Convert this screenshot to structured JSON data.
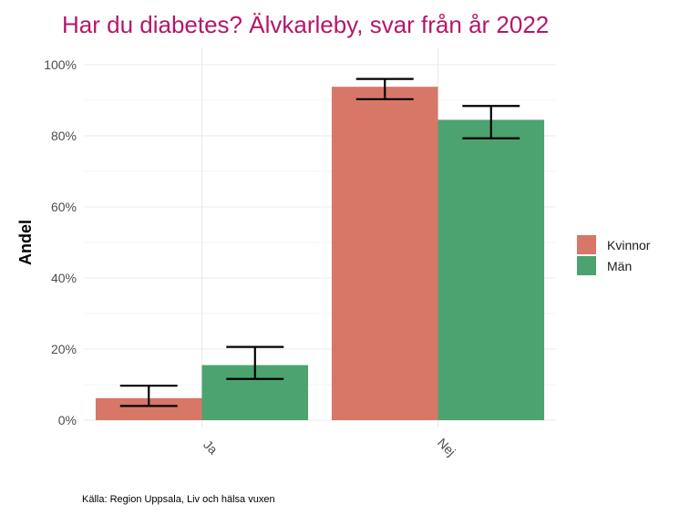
{
  "chart_data": {
    "type": "bar",
    "title": "Har du diabetes? Älvkarleby, svar från år 2022",
    "xlabel": "",
    "ylabel": "Andel",
    "categories": [
      "Ja",
      "Nej"
    ],
    "series": [
      {
        "name": "Kvinnor",
        "color": "#d67768",
        "values": [
          6.2,
          93.8
        ],
        "ci_low": [
          4.0,
          90.3
        ],
        "ci_high": [
          9.7,
          96.0
        ]
      },
      {
        "name": "Män",
        "color": "#4ca370",
        "values": [
          15.5,
          84.5
        ],
        "ci_low": [
          11.6,
          79.3
        ],
        "ci_high": [
          20.6,
          88.4
        ]
      }
    ],
    "ylim": [
      0,
      100
    ],
    "yticks": [
      0,
      20,
      40,
      60,
      80,
      100
    ],
    "ytick_labels": [
      "0%",
      "20%",
      "40%",
      "60%",
      "80%",
      "100%"
    ],
    "legend_position": "right",
    "caption": "Källa: Region Uppsala, Liv och hälsa vuxen"
  }
}
